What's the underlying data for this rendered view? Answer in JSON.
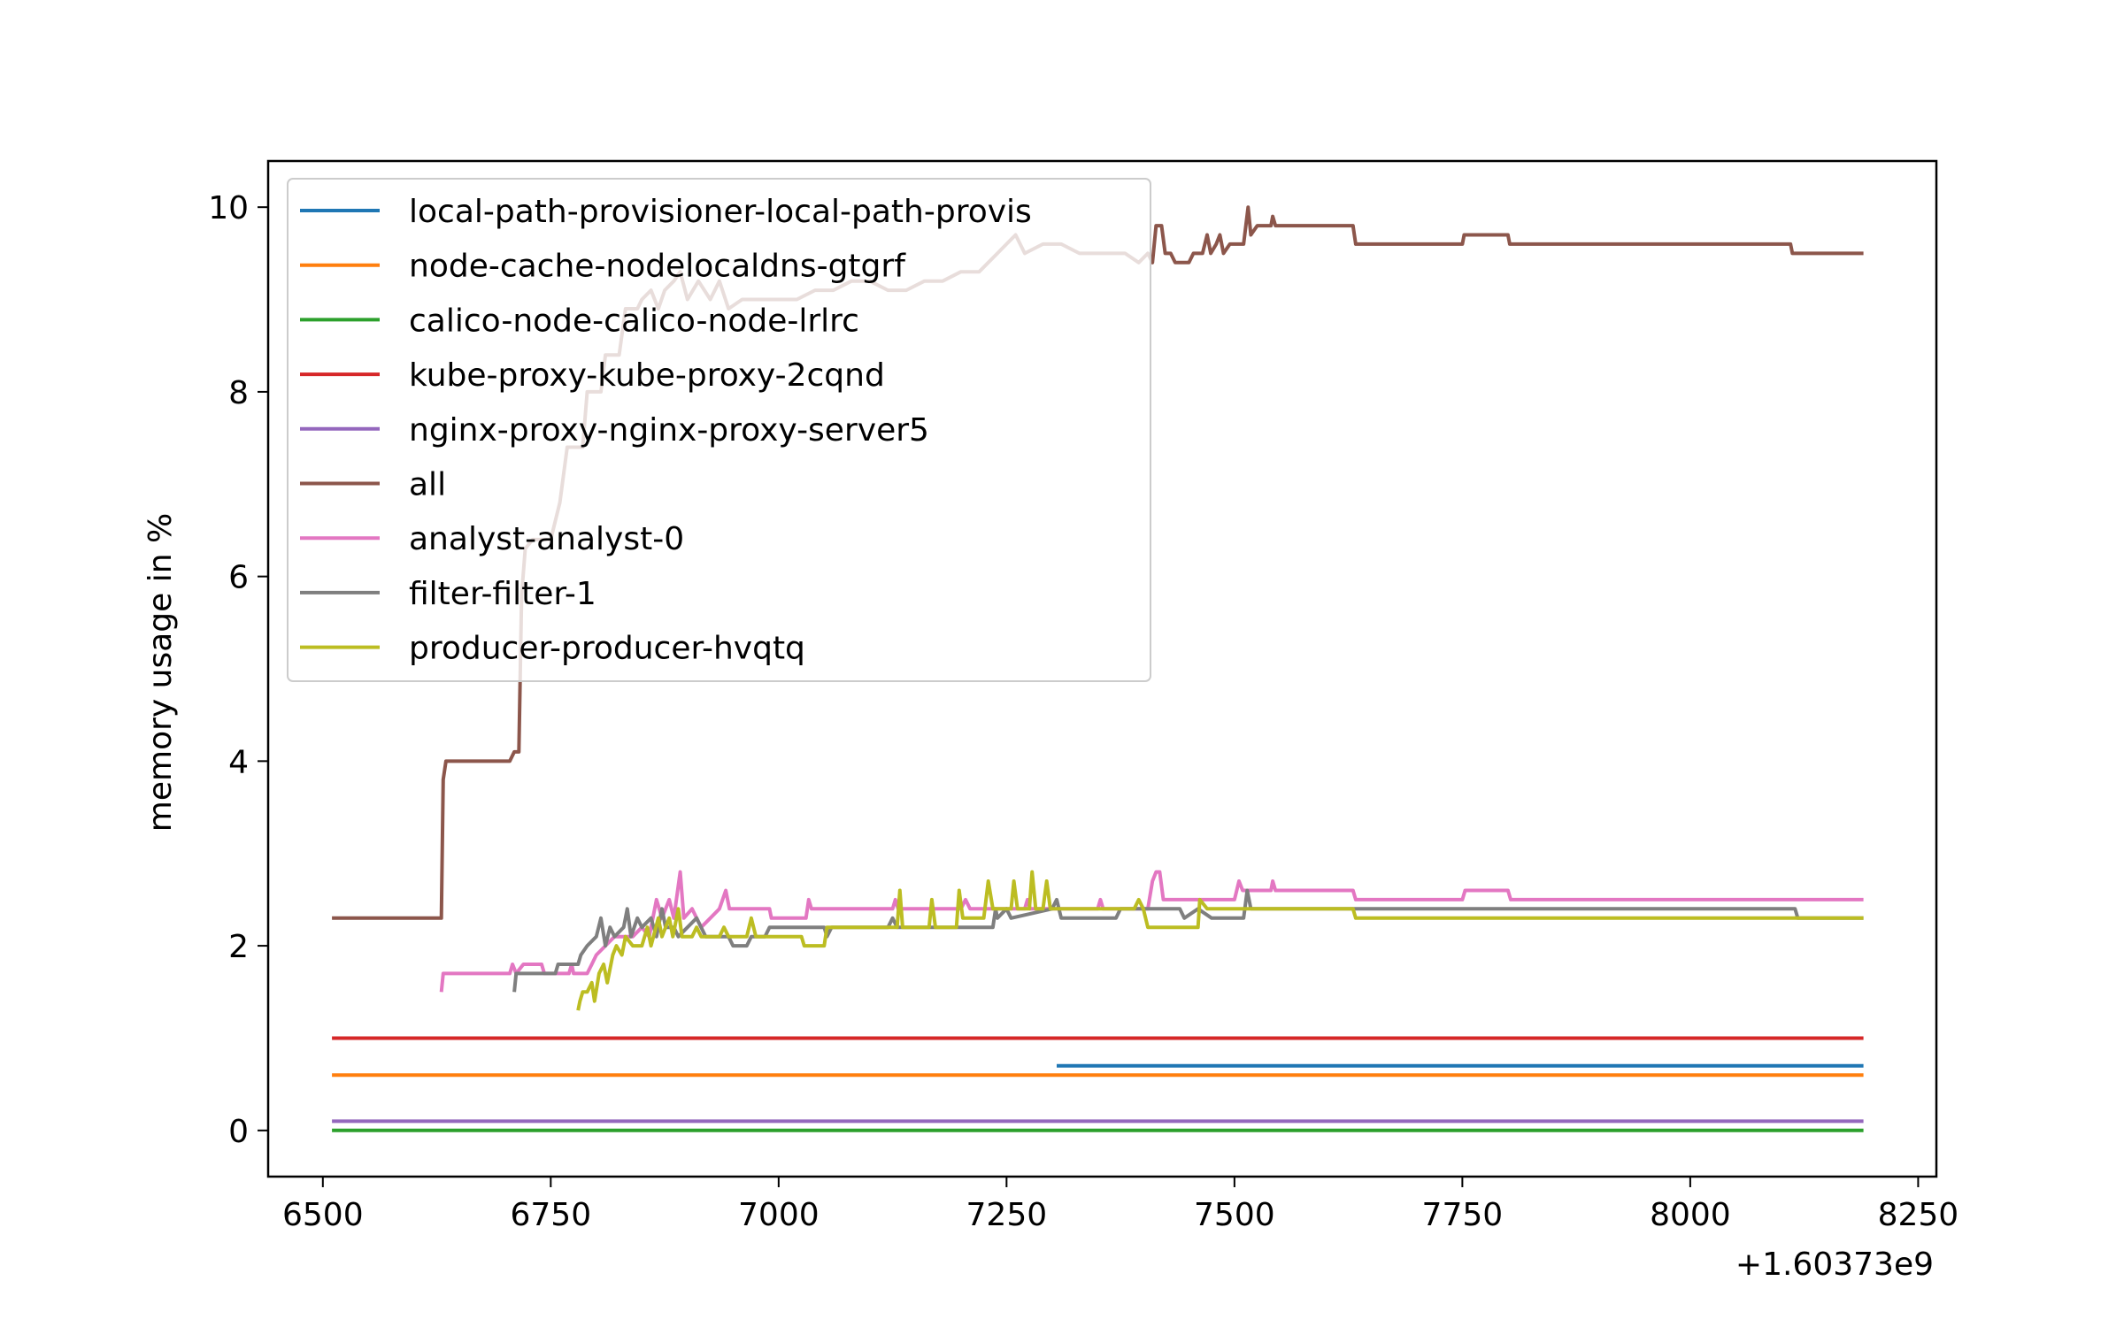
{
  "chart_data": {
    "type": "line",
    "title": "",
    "xlabel": "",
    "ylabel": "memory usage in %",
    "x_offset_label": "+1.60373e9",
    "xlim": [
      6440,
      8270
    ],
    "ylim": [
      -0.5,
      10.5
    ],
    "xticks": [
      6500,
      6750,
      7000,
      7250,
      7500,
      7750,
      8000,
      8250
    ],
    "xtick_labels": [
      "6500",
      "6750",
      "7000",
      "7250",
      "7500",
      "7750",
      "8000",
      "8250"
    ],
    "yticks": [
      0,
      2,
      4,
      6,
      8,
      10
    ],
    "ytick_labels": [
      "0",
      "2",
      "4",
      "6",
      "8",
      "10"
    ],
    "grid": false,
    "legend_position": "upper-left",
    "series": [
      {
        "name": "local-path-provisioner-local-path-provis",
        "color": "#1f77b4",
        "points": [
          [
            7305,
            0.7
          ],
          [
            8190,
            0.7
          ]
        ]
      },
      {
        "name": "node-cache-nodelocaldns-gtgrf",
        "color": "#ff7f0e",
        "points": [
          [
            6510,
            0.6
          ],
          [
            8190,
            0.6
          ]
        ]
      },
      {
        "name": "calico-node-calico-node-lrlrc",
        "color": "#2ca02c",
        "points": [
          [
            6510,
            0.0
          ],
          [
            8190,
            0.0
          ]
        ]
      },
      {
        "name": "kube-proxy-kube-proxy-2cqnd",
        "color": "#d62728",
        "points": [
          [
            6510,
            1.0
          ],
          [
            8190,
            1.0
          ]
        ]
      },
      {
        "name": "nginx-proxy-nginx-proxy-server5",
        "color": "#9467bd",
        "points": [
          [
            6510,
            0.1
          ],
          [
            8190,
            0.1
          ]
        ]
      },
      {
        "name": "all",
        "color": "#8c564b",
        "points": [
          [
            6510,
            2.3
          ],
          [
            6630,
            2.3
          ],
          [
            6632,
            3.8
          ],
          [
            6635,
            4.0
          ],
          [
            6705,
            4.0
          ],
          [
            6710,
            4.1
          ],
          [
            6715,
            4.1
          ],
          [
            6718,
            5.8
          ],
          [
            6722,
            6.3
          ],
          [
            6730,
            6.4
          ],
          [
            6750,
            6.4
          ],
          [
            6760,
            6.8
          ],
          [
            6768,
            7.4
          ],
          [
            6785,
            7.4
          ],
          [
            6790,
            8.0
          ],
          [
            6805,
            8.0
          ],
          [
            6810,
            8.4
          ],
          [
            6825,
            8.4
          ],
          [
            6832,
            8.9
          ],
          [
            6845,
            8.9
          ],
          [
            6850,
            9.0
          ],
          [
            6860,
            9.1
          ],
          [
            6868,
            8.9
          ],
          [
            6875,
            9.1
          ],
          [
            6885,
            9.2
          ],
          [
            6892,
            9.3
          ],
          [
            6900,
            9.0
          ],
          [
            6912,
            9.2
          ],
          [
            6925,
            9.0
          ],
          [
            6935,
            9.2
          ],
          [
            6945,
            8.9
          ],
          [
            6960,
            9.0
          ],
          [
            6980,
            9.0
          ],
          [
            7000,
            9.0
          ],
          [
            7020,
            9.0
          ],
          [
            7040,
            9.1
          ],
          [
            7060,
            9.1
          ],
          [
            7080,
            9.2
          ],
          [
            7100,
            9.2
          ],
          [
            7120,
            9.1
          ],
          [
            7140,
            9.1
          ],
          [
            7160,
            9.2
          ],
          [
            7180,
            9.2
          ],
          [
            7200,
            9.3
          ],
          [
            7220,
            9.3
          ],
          [
            7240,
            9.5
          ],
          [
            7250,
            9.6
          ],
          [
            7260,
            9.7
          ],
          [
            7270,
            9.5
          ],
          [
            7290,
            9.6
          ],
          [
            7310,
            9.6
          ],
          [
            7330,
            9.5
          ],
          [
            7360,
            9.5
          ],
          [
            7380,
            9.5
          ],
          [
            7395,
            9.4
          ],
          [
            7405,
            9.5
          ],
          [
            7410,
            9.4
          ],
          [
            7414,
            9.8
          ],
          [
            7420,
            9.8
          ],
          [
            7424,
            9.5
          ],
          [
            7430,
            9.5
          ],
          [
            7435,
            9.4
          ],
          [
            7450,
            9.4
          ],
          [
            7455,
            9.5
          ],
          [
            7465,
            9.5
          ],
          [
            7470,
            9.7
          ],
          [
            7474,
            9.5
          ],
          [
            7480,
            9.6
          ],
          [
            7484,
            9.7
          ],
          [
            7488,
            9.5
          ],
          [
            7495,
            9.6
          ],
          [
            7510,
            9.6
          ],
          [
            7515,
            10.0
          ],
          [
            7518,
            9.7
          ],
          [
            7525,
            9.8
          ],
          [
            7540,
            9.8
          ],
          [
            7542,
            9.9
          ],
          [
            7545,
            9.8
          ],
          [
            7630,
            9.8
          ],
          [
            7633,
            9.6
          ],
          [
            7750,
            9.6
          ],
          [
            7752,
            9.7
          ],
          [
            7800,
            9.7
          ],
          [
            7802,
            9.6
          ],
          [
            8110,
            9.6
          ],
          [
            8112,
            9.5
          ],
          [
            8190,
            9.5
          ]
        ]
      },
      {
        "name": "analyst-analyst-0",
        "color": "#e377c2",
        "points": [
          [
            6630,
            1.5
          ],
          [
            6632,
            1.7
          ],
          [
            6705,
            1.7
          ],
          [
            6708,
            1.8
          ],
          [
            6712,
            1.7
          ],
          [
            6720,
            1.8
          ],
          [
            6740,
            1.8
          ],
          [
            6743,
            1.7
          ],
          [
            6770,
            1.7
          ],
          [
            6773,
            1.8
          ],
          [
            6775,
            1.7
          ],
          [
            6790,
            1.7
          ],
          [
            6795,
            1.8
          ],
          [
            6800,
            1.9
          ],
          [
            6810,
            2.0
          ],
          [
            6820,
            2.1
          ],
          [
            6840,
            2.1
          ],
          [
            6850,
            2.2
          ],
          [
            6858,
            2.1
          ],
          [
            6866,
            2.5
          ],
          [
            6872,
            2.3
          ],
          [
            6880,
            2.5
          ],
          [
            6885,
            2.3
          ],
          [
            6892,
            2.8
          ],
          [
            6896,
            2.3
          ],
          [
            6905,
            2.4
          ],
          [
            6915,
            2.2
          ],
          [
            6925,
            2.3
          ],
          [
            6935,
            2.4
          ],
          [
            6942,
            2.6
          ],
          [
            6946,
            2.4
          ],
          [
            6990,
            2.4
          ],
          [
            6992,
            2.3
          ],
          [
            7030,
            2.3
          ],
          [
            7033,
            2.5
          ],
          [
            7036,
            2.4
          ],
          [
            7125,
            2.4
          ],
          [
            7128,
            2.5
          ],
          [
            7131,
            2.4
          ],
          [
            7200,
            2.4
          ],
          [
            7205,
            2.5
          ],
          [
            7210,
            2.4
          ],
          [
            7270,
            2.4
          ],
          [
            7273,
            2.5
          ],
          [
            7276,
            2.4
          ],
          [
            7350,
            2.4
          ],
          [
            7353,
            2.5
          ],
          [
            7356,
            2.4
          ],
          [
            7405,
            2.4
          ],
          [
            7410,
            2.7
          ],
          [
            7414,
            2.8
          ],
          [
            7418,
            2.8
          ],
          [
            7422,
            2.5
          ],
          [
            7500,
            2.5
          ],
          [
            7505,
            2.7
          ],
          [
            7509,
            2.6
          ],
          [
            7540,
            2.6
          ],
          [
            7542,
            2.7
          ],
          [
            7545,
            2.6
          ],
          [
            7630,
            2.6
          ],
          [
            7633,
            2.5
          ],
          [
            7750,
            2.5
          ],
          [
            7753,
            2.6
          ],
          [
            7800,
            2.6
          ],
          [
            7803,
            2.5
          ],
          [
            8190,
            2.5
          ]
        ]
      },
      {
        "name": "filter-filter-1",
        "color": "#7f7f7f",
        "points": [
          [
            6710,
            1.5
          ],
          [
            6712,
            1.7
          ],
          [
            6755,
            1.7
          ],
          [
            6758,
            1.8
          ],
          [
            6780,
            1.8
          ],
          [
            6783,
            1.9
          ],
          [
            6790,
            2.0
          ],
          [
            6800,
            2.1
          ],
          [
            6805,
            2.3
          ],
          [
            6810,
            2.0
          ],
          [
            6815,
            2.2
          ],
          [
            6820,
            2.1
          ],
          [
            6830,
            2.2
          ],
          [
            6834,
            2.4
          ],
          [
            6838,
            2.1
          ],
          [
            6845,
            2.3
          ],
          [
            6850,
            2.2
          ],
          [
            6860,
            2.3
          ],
          [
            6866,
            2.1
          ],
          [
            6872,
            2.4
          ],
          [
            6876,
            2.2
          ],
          [
            6885,
            2.2
          ],
          [
            6890,
            2.1
          ],
          [
            6900,
            2.2
          ],
          [
            6910,
            2.3
          ],
          [
            6920,
            2.1
          ],
          [
            6930,
            2.1
          ],
          [
            6945,
            2.1
          ],
          [
            6950,
            2.0
          ],
          [
            6965,
            2.0
          ],
          [
            6970,
            2.1
          ],
          [
            6985,
            2.1
          ],
          [
            6990,
            2.2
          ],
          [
            7050,
            2.2
          ],
          [
            7053,
            2.1
          ],
          [
            7058,
            2.2
          ],
          [
            7120,
            2.2
          ],
          [
            7125,
            2.3
          ],
          [
            7130,
            2.2
          ],
          [
            7235,
            2.2
          ],
          [
            7238,
            2.4
          ],
          [
            7240,
            2.3
          ],
          [
            7250,
            2.4
          ],
          [
            7255,
            2.3
          ],
          [
            7300,
            2.4
          ],
          [
            7305,
            2.5
          ],
          [
            7310,
            2.3
          ],
          [
            7370,
            2.3
          ],
          [
            7375,
            2.4
          ],
          [
            7440,
            2.4
          ],
          [
            7445,
            2.3
          ],
          [
            7460,
            2.4
          ],
          [
            7475,
            2.3
          ],
          [
            7510,
            2.3
          ],
          [
            7514,
            2.6
          ],
          [
            7518,
            2.4
          ],
          [
            8115,
            2.4
          ],
          [
            8118,
            2.3
          ],
          [
            8190,
            2.3
          ]
        ]
      },
      {
        "name": "producer-producer-hvqtq",
        "color": "#bcbd22",
        "points": [
          [
            6780,
            1.3
          ],
          [
            6782,
            1.4
          ],
          [
            6785,
            1.5
          ],
          [
            6790,
            1.5
          ],
          [
            6795,
            1.6
          ],
          [
            6798,
            1.4
          ],
          [
            6803,
            1.7
          ],
          [
            6808,
            1.8
          ],
          [
            6812,
            1.6
          ],
          [
            6818,
            1.9
          ],
          [
            6822,
            2.0
          ],
          [
            6828,
            1.9
          ],
          [
            6832,
            2.1
          ],
          [
            6840,
            2.0
          ],
          [
            6850,
            2.0
          ],
          [
            6856,
            2.2
          ],
          [
            6860,
            2.0
          ],
          [
            6868,
            2.3
          ],
          [
            6872,
            2.1
          ],
          [
            6880,
            2.3
          ],
          [
            6884,
            2.1
          ],
          [
            6890,
            2.4
          ],
          [
            6894,
            2.1
          ],
          [
            6905,
            2.1
          ],
          [
            6910,
            2.2
          ],
          [
            6915,
            2.1
          ],
          [
            6935,
            2.1
          ],
          [
            6940,
            2.2
          ],
          [
            6945,
            2.1
          ],
          [
            6965,
            2.1
          ],
          [
            6970,
            2.3
          ],
          [
            6975,
            2.1
          ],
          [
            7025,
            2.1
          ],
          [
            7028,
            2.0
          ],
          [
            7050,
            2.0
          ],
          [
            7053,
            2.2
          ],
          [
            7130,
            2.2
          ],
          [
            7133,
            2.6
          ],
          [
            7136,
            2.2
          ],
          [
            7165,
            2.2
          ],
          [
            7168,
            2.5
          ],
          [
            7172,
            2.2
          ],
          [
            7195,
            2.2
          ],
          [
            7198,
            2.6
          ],
          [
            7202,
            2.3
          ],
          [
            7225,
            2.3
          ],
          [
            7230,
            2.7
          ],
          [
            7235,
            2.4
          ],
          [
            7255,
            2.4
          ],
          [
            7258,
            2.7
          ],
          [
            7262,
            2.4
          ],
          [
            7275,
            2.4
          ],
          [
            7278,
            2.8
          ],
          [
            7282,
            2.4
          ],
          [
            7290,
            2.4
          ],
          [
            7294,
            2.7
          ],
          [
            7298,
            2.4
          ],
          [
            7390,
            2.4
          ],
          [
            7395,
            2.5
          ],
          [
            7400,
            2.4
          ],
          [
            7405,
            2.2
          ],
          [
            7460,
            2.2
          ],
          [
            7462,
            2.5
          ],
          [
            7470,
            2.4
          ],
          [
            7630,
            2.4
          ],
          [
            7633,
            2.3
          ],
          [
            8190,
            2.3
          ]
        ]
      }
    ]
  }
}
